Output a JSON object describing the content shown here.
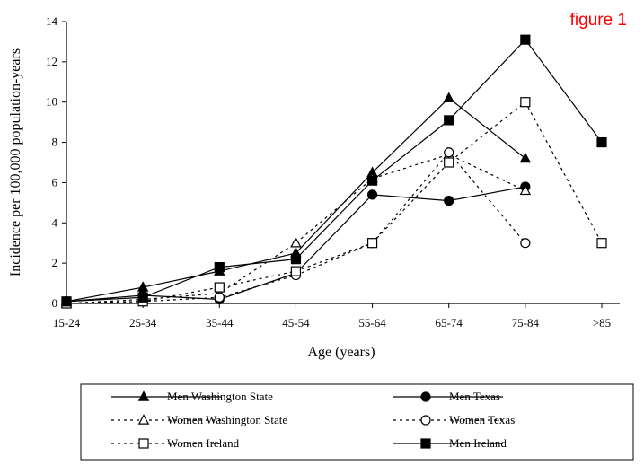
{
  "annotation": "figure 1",
  "chart_data": {
    "type": "line",
    "title": "",
    "xlabel": "Age (years)",
    "ylabel": "Incidence per 100,000 population-years",
    "ylim": [
      0,
      14
    ],
    "yticks": [
      0,
      2,
      4,
      6,
      8,
      10,
      12,
      14
    ],
    "grid": false,
    "legend_position": "bottom",
    "categories": [
      "15-24",
      "25-34",
      "35-44",
      "45-54",
      "55-64",
      "65-74",
      "75-84",
      ">85"
    ],
    "series": [
      {
        "name": "Men Washington State",
        "values": [
          0.1,
          0.8,
          1.6,
          2.5,
          6.5,
          10.2,
          7.2,
          null
        ],
        "line": "solid",
        "marker": "triangle",
        "filled": true
      },
      {
        "name": "Men Texas",
        "values": [
          0.1,
          0.4,
          0.2,
          1.5,
          5.4,
          5.1,
          5.8,
          null
        ],
        "line": "solid",
        "marker": "circle",
        "filled": true
      },
      {
        "name": "Women Washington State",
        "values": [
          0.0,
          0.2,
          0.5,
          3.0,
          6.2,
          7.4,
          5.6,
          null
        ],
        "line": "dotted",
        "marker": "triangle",
        "filled": false
      },
      {
        "name": "Women Texas",
        "values": [
          0.0,
          0.1,
          0.3,
          1.4,
          3.0,
          7.5,
          3.0,
          null
        ],
        "line": "dotted",
        "marker": "circle",
        "filled": false
      },
      {
        "name": "Women Ireland",
        "values": [
          0.0,
          0.1,
          0.8,
          1.6,
          3.0,
          7.0,
          10.0,
          3.0
        ],
        "line": "dotted",
        "marker": "square",
        "filled": false
      },
      {
        "name": "Men Ireland",
        "values": [
          0.1,
          0.3,
          1.8,
          2.2,
          6.1,
          9.1,
          13.1,
          8.0
        ],
        "line": "solid",
        "marker": "square",
        "filled": true
      }
    ]
  }
}
